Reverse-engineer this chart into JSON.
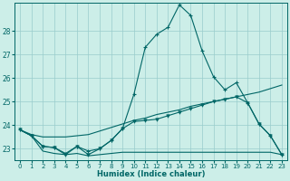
{
  "xlabel": "Humidex (Indice chaleur)",
  "xlim": [
    -0.5,
    23.5
  ],
  "ylim": [
    22.5,
    29.2
  ],
  "yticks": [
    23,
    24,
    25,
    26,
    27,
    28
  ],
  "xticks": [
    0,
    1,
    2,
    3,
    4,
    5,
    6,
    7,
    8,
    9,
    10,
    11,
    12,
    13,
    14,
    15,
    16,
    17,
    18,
    19,
    20,
    21,
    22,
    23
  ],
  "background_color": "#cceee8",
  "grid_color": "#99cccc",
  "line_color": "#006666",
  "line_main": {
    "x": [
      0,
      1,
      2,
      3,
      4,
      5,
      6,
      7,
      8,
      9,
      10,
      11,
      12,
      13,
      14,
      15,
      16,
      17,
      18,
      19,
      20,
      21,
      22,
      23
    ],
    "y": [
      23.8,
      23.55,
      23.1,
      23.05,
      22.8,
      23.1,
      22.9,
      23.0,
      23.35,
      23.85,
      25.3,
      27.3,
      27.85,
      28.15,
      29.1,
      28.65,
      27.15,
      26.05,
      25.5,
      25.8,
      24.95,
      24.05,
      23.55,
      22.75
    ]
  },
  "line_diag": {
    "x": [
      0,
      1,
      2,
      3,
      4,
      5,
      6,
      7,
      8,
      9,
      10,
      11,
      12,
      13,
      14,
      15,
      16,
      17,
      18,
      19,
      20,
      21,
      22,
      23
    ],
    "y": [
      23.8,
      23.6,
      23.5,
      23.5,
      23.5,
      23.55,
      23.6,
      23.75,
      23.9,
      24.05,
      24.2,
      24.3,
      24.45,
      24.55,
      24.65,
      24.8,
      24.9,
      25.0,
      25.1,
      25.2,
      25.3,
      25.4,
      25.55,
      25.7
    ]
  },
  "line_flat": {
    "x": [
      0,
      1,
      2,
      3,
      4,
      5,
      6,
      7,
      8,
      9,
      10,
      11,
      12,
      13,
      14,
      15,
      16,
      17,
      18,
      19,
      20,
      21,
      22,
      23
    ],
    "y": [
      23.8,
      23.55,
      22.9,
      22.8,
      22.75,
      22.8,
      22.7,
      22.75,
      22.8,
      22.85,
      22.85,
      22.85,
      22.85,
      22.85,
      22.85,
      22.85,
      22.85,
      22.85,
      22.85,
      22.85,
      22.85,
      22.85,
      22.85,
      22.75
    ]
  },
  "line_wiggle": {
    "x": [
      0,
      1,
      2,
      3,
      4,
      5,
      6,
      7,
      8,
      9,
      10,
      11,
      12,
      13,
      14,
      15,
      16,
      17,
      18,
      19,
      20,
      21,
      22,
      23
    ],
    "y": [
      23.8,
      23.55,
      23.1,
      23.05,
      22.75,
      23.1,
      22.75,
      23.0,
      23.35,
      23.85,
      24.15,
      24.2,
      24.25,
      24.4,
      24.55,
      24.7,
      24.85,
      25.0,
      25.1,
      25.2,
      24.95,
      24.05,
      23.55,
      22.75
    ]
  }
}
